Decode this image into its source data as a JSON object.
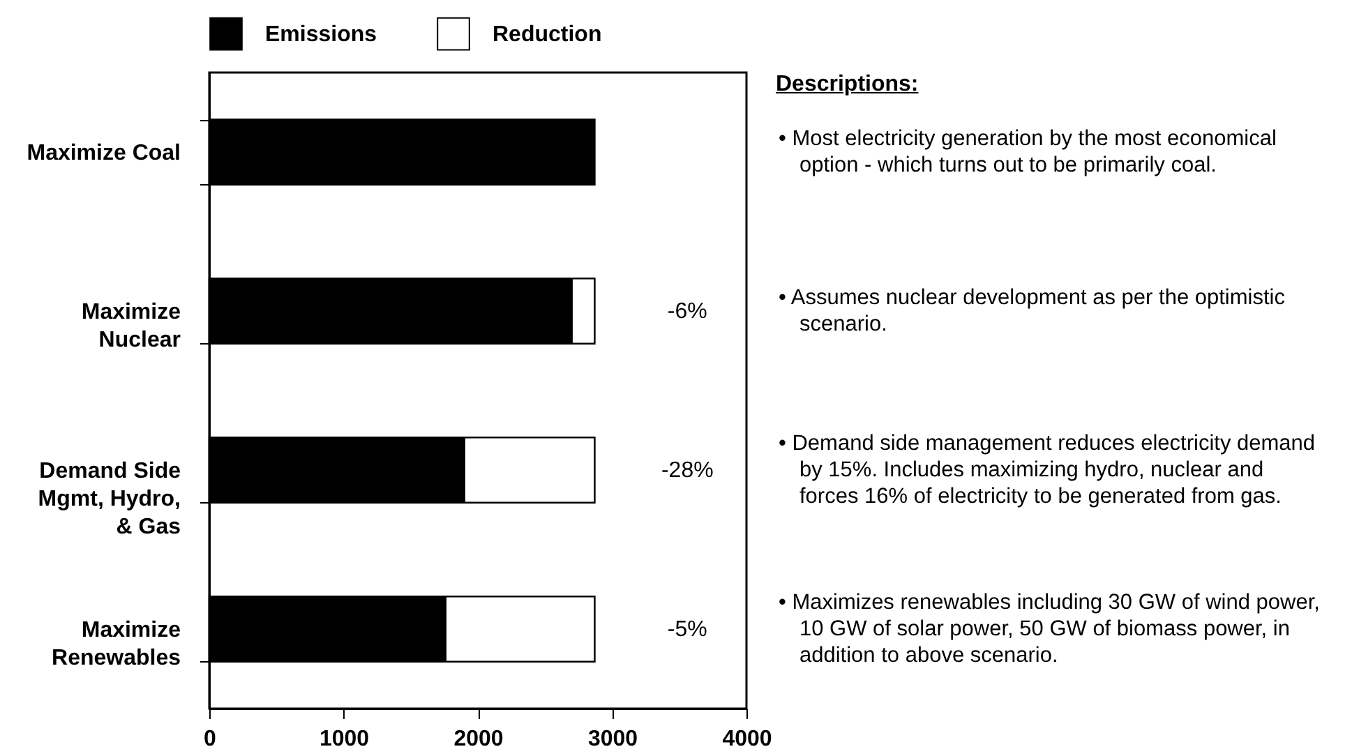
{
  "chart_data": {
    "type": "bar",
    "orientation": "horizontal",
    "stacked": true,
    "categories": [
      "Maximize Coal",
      "Maximize Nuclear",
      "Demand Side Mgmt, Hydro, & Gas",
      "Maximize Renewables"
    ],
    "series": [
      {
        "name": "Emissions",
        "color": "#000000",
        "values": [
          2870,
          2700,
          1900,
          1760
        ]
      },
      {
        "name": "Reduction",
        "color": "#ffffff",
        "values": [
          null,
          170,
          970,
          1110
        ]
      }
    ],
    "xlim": [
      0,
      4000
    ],
    "xticks": [
      0,
      1000,
      2000,
      3000,
      4000
    ],
    "grid": false,
    "legend": "top",
    "annotations": [
      "Descriptions:",
      "• Most electricity generation by the most economical option - which turns out to be primarily coal.",
      "• Assumes nuclear development as per the optimistic scenario.",
      "• Demand side management reduces electricity demand by 15%.  Includes maximizing hydro, nuclear and forces 16% of electricity to be generated from gas.",
      "• Maximizes renewables including 30 GW of wind power, 10 GW of solar power, 50 GW of biomass power, in addition to above scenario.",
      "-6%",
      "-28%",
      "-5%"
    ]
  }
}
